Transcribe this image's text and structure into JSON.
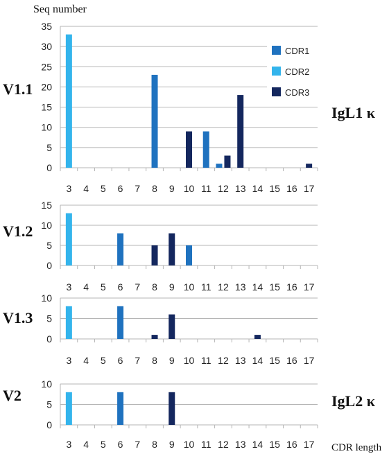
{
  "y_axis_title": "Seq number",
  "x_axis_title": "CDR length",
  "right_labels": [
    "IgL1 κ",
    "IgL2 κ"
  ],
  "legend": [
    {
      "label": "CDR1",
      "color": "#1f72bf"
    },
    {
      "label": "CDR2",
      "color": "#33b4ec"
    },
    {
      "label": "CDR3",
      "color": "#14275e"
    }
  ],
  "colors": {
    "CDR1": "#1f72bf",
    "CDR2": "#33b4ec",
    "CDR3": "#14275e",
    "grid": "#b5b5b5"
  },
  "chart_data": {
    "type": "bar",
    "categories": [
      "3",
      "4",
      "5",
      "6",
      "7",
      "8",
      "9",
      "10",
      "11",
      "12",
      "13",
      "14",
      "15",
      "16",
      "17"
    ],
    "xlabel": "CDR length",
    "ylabel": "Seq number",
    "grid": true,
    "legend_position": "top-right of first panel",
    "panels": [
      {
        "name": "V1.1",
        "ylim": [
          0,
          35
        ],
        "yticks": [
          0,
          5,
          10,
          15,
          20,
          25,
          30,
          35
        ],
        "bars": [
          {
            "x": "3",
            "series": "CDR2",
            "value": 33
          },
          {
            "x": "8",
            "series": "CDR1",
            "value": 23
          },
          {
            "x": "10",
            "series": "CDR3",
            "value": 9
          },
          {
            "x": "11",
            "series": "CDR1",
            "value": 9
          },
          {
            "x": "12",
            "series": "CDR1",
            "value": 1
          },
          {
            "x": "12",
            "series": "CDR3",
            "value": 3
          },
          {
            "x": "13",
            "series": "CDR3",
            "value": 18
          },
          {
            "x": "17",
            "series": "CDR3",
            "value": 1
          }
        ]
      },
      {
        "name": "V1.2",
        "ylim": [
          0,
          15
        ],
        "yticks": [
          0,
          5,
          10,
          15
        ],
        "bars": [
          {
            "x": "3",
            "series": "CDR2",
            "value": 13
          },
          {
            "x": "6",
            "series": "CDR1",
            "value": 8
          },
          {
            "x": "8",
            "series": "CDR3",
            "value": 5
          },
          {
            "x": "9",
            "series": "CDR3",
            "value": 8
          },
          {
            "x": "10",
            "series": "CDR1",
            "value": 5
          }
        ]
      },
      {
        "name": "V1.3",
        "ylim": [
          0,
          10
        ],
        "yticks": [
          0,
          5,
          10
        ],
        "bars": [
          {
            "x": "3",
            "series": "CDR2",
            "value": 8
          },
          {
            "x": "6",
            "series": "CDR1",
            "value": 8
          },
          {
            "x": "8",
            "series": "CDR3",
            "value": 1
          },
          {
            "x": "9",
            "series": "CDR3",
            "value": 6
          },
          {
            "x": "14",
            "series": "CDR3",
            "value": 1
          }
        ]
      },
      {
        "name": "V2",
        "ylim": [
          0,
          10
        ],
        "yticks": [
          0,
          5,
          10
        ],
        "bars": [
          {
            "x": "3",
            "series": "CDR2",
            "value": 8
          },
          {
            "x": "6",
            "series": "CDR1",
            "value": 8
          },
          {
            "x": "9",
            "series": "CDR3",
            "value": 8
          }
        ]
      }
    ]
  }
}
